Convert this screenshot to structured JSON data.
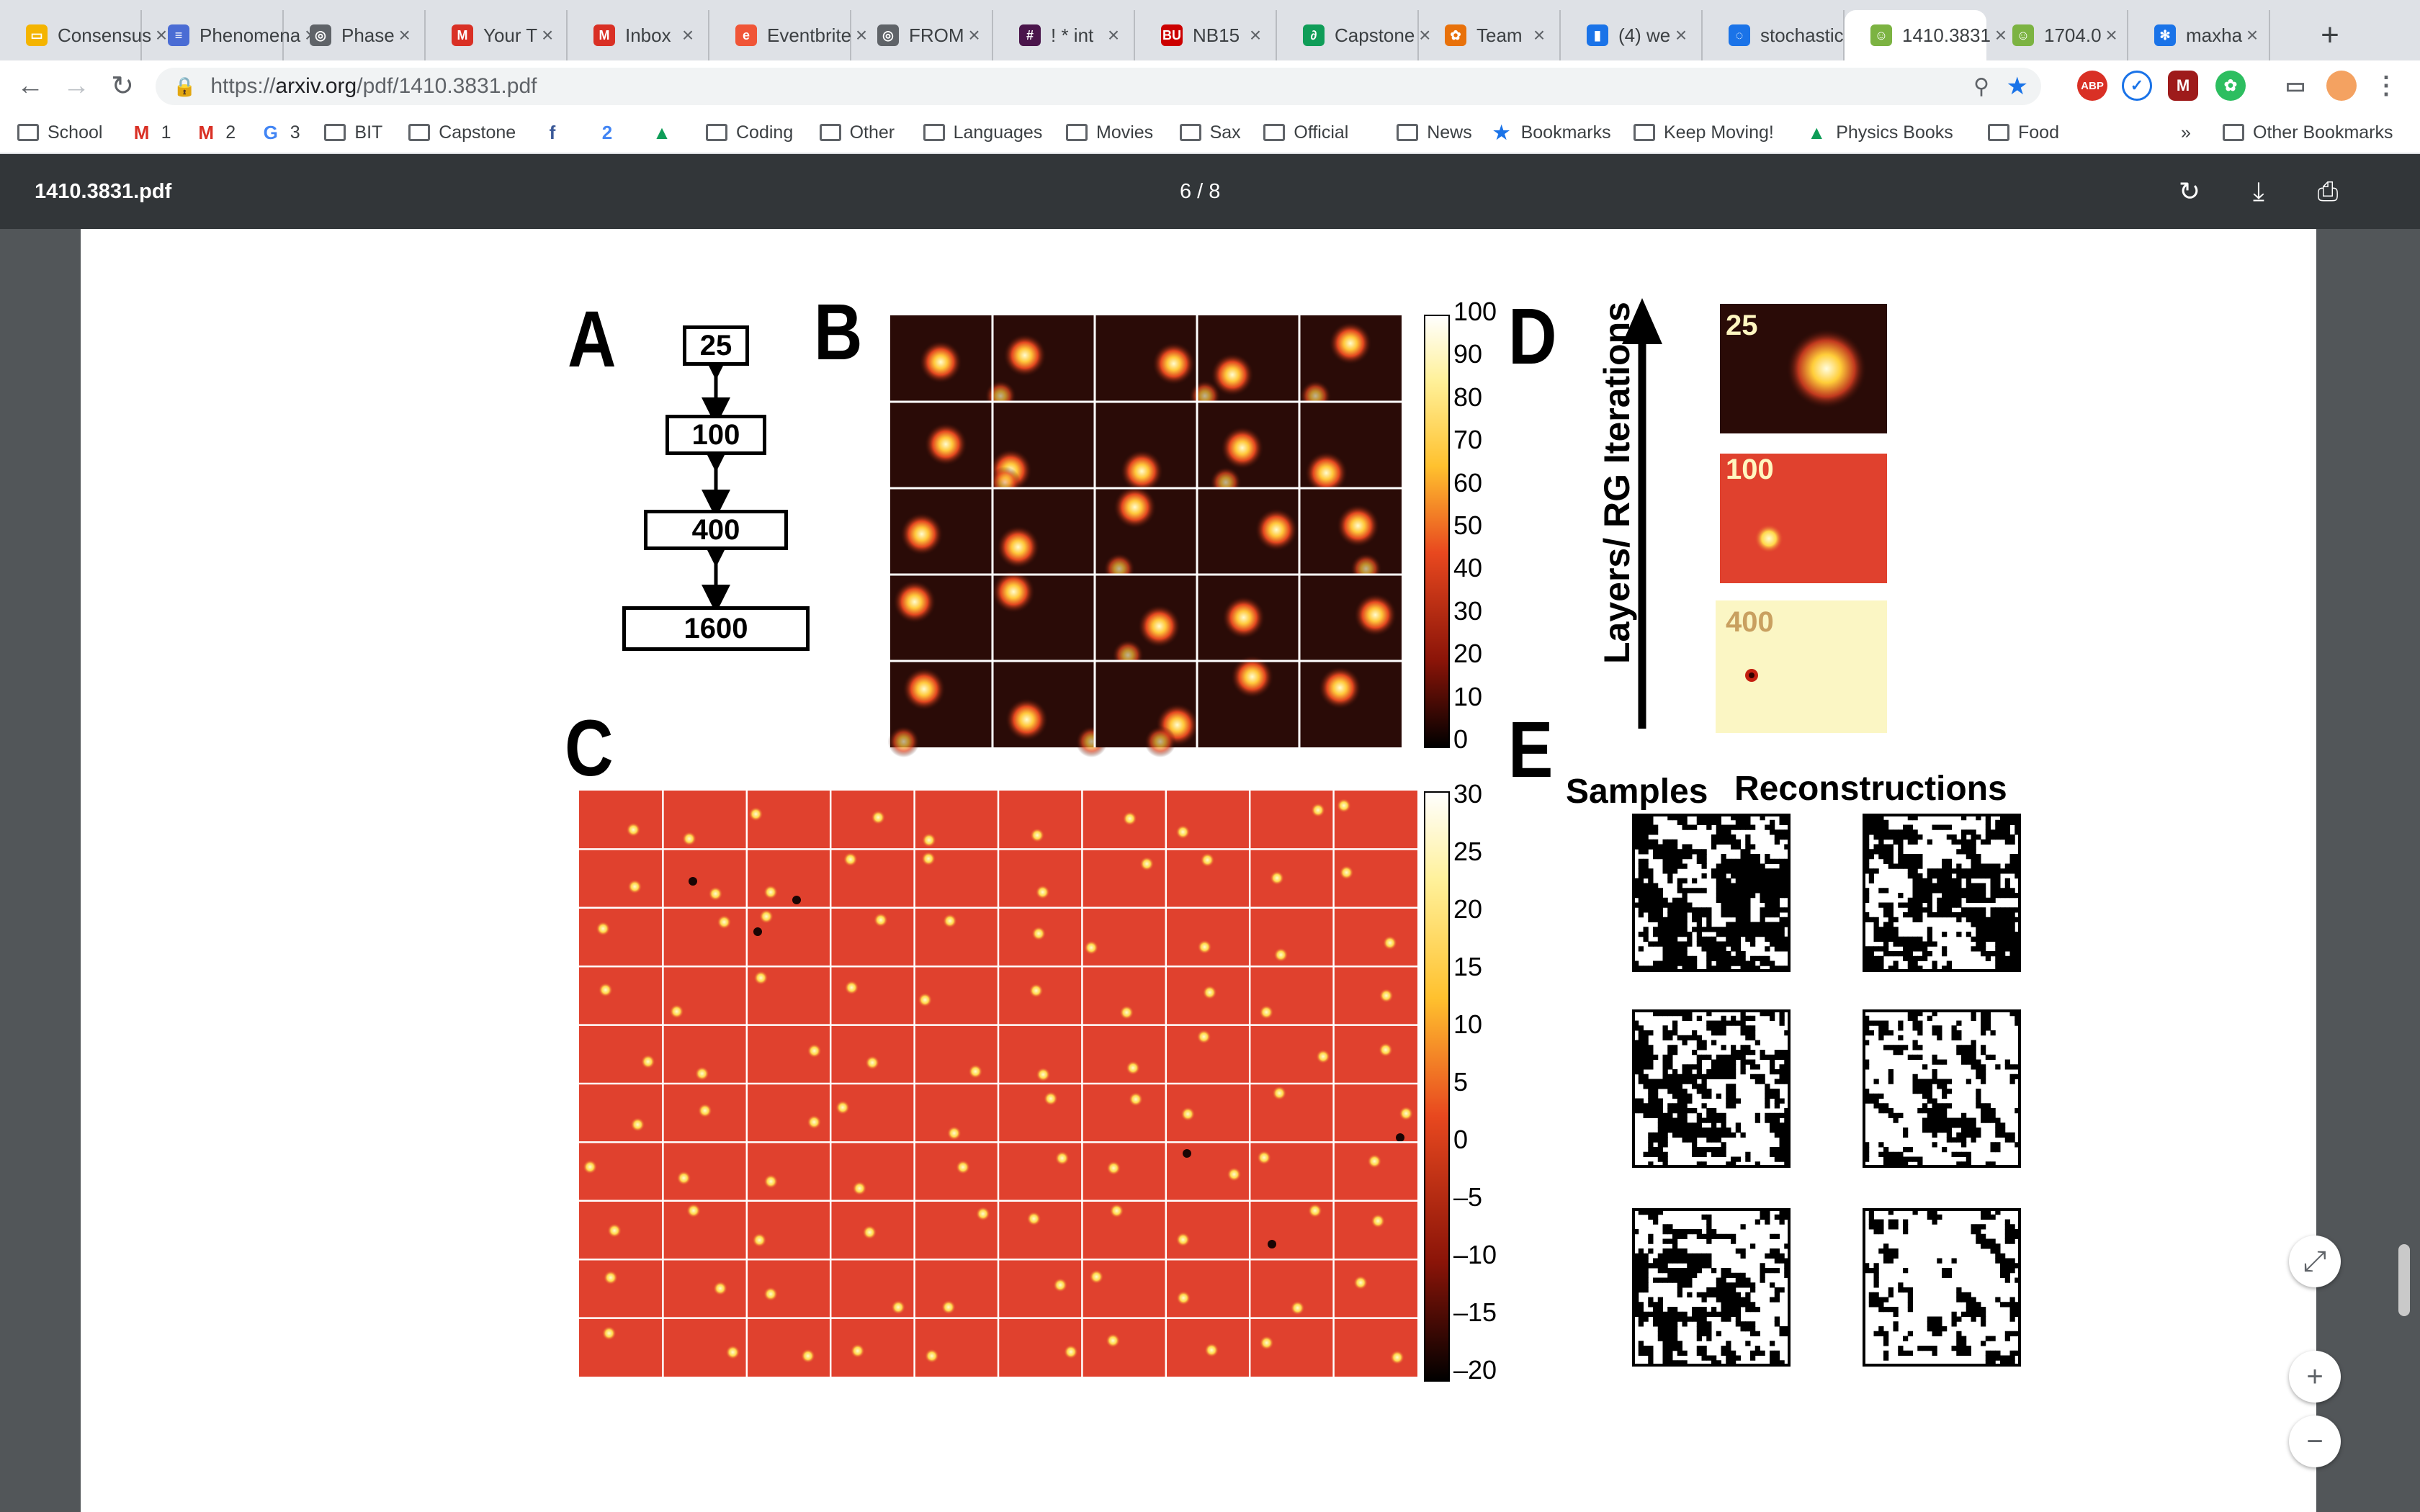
{
  "tabs": [
    {
      "title": "Consensus",
      "icon": "slides-icon",
      "color": "#f4b400"
    },
    {
      "title": "Phenomena",
      "icon": "doc-icon",
      "color": "#4a6cd4"
    },
    {
      "title": "Phase",
      "icon": "globe-icon",
      "color": "#5f6368"
    },
    {
      "title": "Your T",
      "icon": "gmail-icon",
      "color": "#d93025"
    },
    {
      "title": "Inbox",
      "icon": "gmail-icon",
      "color": "#d93025"
    },
    {
      "title": "Eventbrite",
      "icon": "eventbrite-icon",
      "color": "#f05537"
    },
    {
      "title": "FROM",
      "icon": "globe-icon",
      "color": "#5f6368"
    },
    {
      "title": "! * int",
      "icon": "slack-icon",
      "color": "#4a154b"
    },
    {
      "title": "NB15",
      "icon": "bu-icon",
      "color": "#cc0000"
    },
    {
      "title": "Capstone",
      "icon": "leaf-icon",
      "color": "#0f9d58"
    },
    {
      "title": "Team",
      "icon": "team-icon",
      "color": "#e8710a"
    },
    {
      "title": "(4) we",
      "icon": "trello-icon",
      "color": "#1a73e8"
    },
    {
      "title": "stochastic",
      "icon": "loading-icon",
      "color": "#1a73e8"
    },
    {
      "title": "1410.3831",
      "icon": "arxiv-icon",
      "color": "#7cb342"
    },
    {
      "title": "1704.0",
      "icon": "arxiv-icon",
      "color": "#7cb342"
    },
    {
      "title": "maxha",
      "icon": "snowflake-icon",
      "color": "#1a73e8"
    }
  ],
  "url": {
    "host": "arxiv.org",
    "path": "/pdf/1410.3831.pdf",
    "scheme": "https://"
  },
  "bookmarks": [
    {
      "label": "School",
      "type": "folder"
    },
    {
      "label": "1",
      "type": "gmail"
    },
    {
      "label": "2",
      "type": "gmail"
    },
    {
      "label": "3",
      "type": "google"
    },
    {
      "label": "BIT",
      "type": "folder"
    },
    {
      "label": "Capstone",
      "type": "folder"
    },
    {
      "label": "",
      "type": "facebook"
    },
    {
      "label": "",
      "type": "calendar"
    },
    {
      "label": "",
      "type": "drive"
    },
    {
      "label": "Coding",
      "type": "folder"
    },
    {
      "label": "Other",
      "type": "folder"
    },
    {
      "label": "Languages",
      "type": "folder"
    },
    {
      "label": "Movies",
      "type": "folder"
    },
    {
      "label": "Sax",
      "type": "folder"
    },
    {
      "label": "Official",
      "type": "folder"
    },
    {
      "label": "News",
      "type": "folder"
    },
    {
      "label": "Bookmarks",
      "type": "star"
    },
    {
      "label": "Keep Moving!",
      "type": "folder"
    },
    {
      "label": "Physics Books",
      "type": "drive"
    },
    {
      "label": "Food",
      "type": "folder"
    }
  ],
  "bookmarks_more": "»",
  "other_bookmarks": "Other Bookmarks",
  "pdf": {
    "title": "1410.3831.pdf",
    "page_indicator": "6 / 8"
  },
  "figure": {
    "panel_a": {
      "label": "A",
      "layers": [
        "25",
        "100",
        "400",
        "1600"
      ]
    },
    "panel_b": {
      "label": "B",
      "colorbar_ticks": [
        "100",
        "90",
        "80",
        "70",
        "60",
        "50",
        "40",
        "30",
        "20",
        "10",
        "0"
      ]
    },
    "panel_c": {
      "label": "C",
      "colorbar_ticks": [
        "30",
        "25",
        "20",
        "15",
        "10",
        "5",
        "0",
        "–5",
        "–10",
        "–15",
        "–20"
      ]
    },
    "panel_d": {
      "label": "D",
      "axis_label": "Layers/ RG Iterations",
      "tiles": [
        "25",
        "100",
        "400"
      ]
    },
    "panel_e": {
      "label": "E",
      "col_samples": "Samples",
      "col_reconstructions": "Reconstructions"
    }
  },
  "colors": {
    "accent": "#1a73e8",
    "pdf_bar": "#323639",
    "viewer_bg": "#525659",
    "tab_strip": "#dee1e6"
  }
}
